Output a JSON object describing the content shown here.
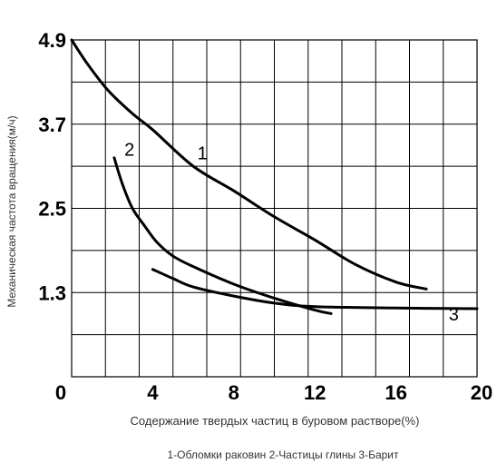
{
  "chart_data": {
    "type": "line",
    "xlabel": "Содержание твердых частиц в буровом растворе(%)",
    "ylabel": "Механическая частота вращения(м/ч)",
    "legend_text": "1-Обломки раковин  2-Частицы глины  3-Барит",
    "xlim": [
      0,
      20
    ],
    "x_ticks": [
      0,
      4,
      8,
      12,
      16,
      20
    ],
    "x_tick_labels": [
      "0",
      "4",
      "8",
      "12",
      "16",
      "20"
    ],
    "y_tick_values": [
      1.3,
      2.5,
      3.7,
      4.9
    ],
    "y_tick_labels": [
      "1.3",
      "2.5",
      "3.7",
      "4.9"
    ],
    "grid": true,
    "series": [
      {
        "name": "1",
        "points": [
          [
            0.0,
            4.9
          ],
          [
            0.8,
            4.55
          ],
          [
            1.8,
            4.18
          ],
          [
            3.0,
            3.85
          ],
          [
            4.0,
            3.62
          ],
          [
            6.0,
            3.1
          ],
          [
            8.0,
            2.75
          ],
          [
            10.0,
            2.38
          ],
          [
            12.0,
            2.05
          ],
          [
            14.0,
            1.7
          ],
          [
            16.0,
            1.45
          ],
          [
            17.5,
            1.35
          ]
        ]
      },
      {
        "name": "2",
        "points": [
          [
            2.1,
            3.22
          ],
          [
            2.5,
            2.85
          ],
          [
            3.0,
            2.5
          ],
          [
            3.6,
            2.25
          ],
          [
            4.2,
            2.02
          ],
          [
            5.0,
            1.82
          ],
          [
            6.0,
            1.67
          ],
          [
            8.0,
            1.42
          ],
          [
            10.0,
            1.22
          ],
          [
            12.0,
            1.05
          ],
          [
            12.8,
            1.0
          ]
        ]
      },
      {
        "name": "3",
        "points": [
          [
            4.0,
            1.63
          ],
          [
            5.0,
            1.5
          ],
          [
            6.0,
            1.38
          ],
          [
            8.0,
            1.25
          ],
          [
            10.0,
            1.15
          ],
          [
            12.0,
            1.1
          ],
          [
            16.0,
            1.08
          ],
          [
            20.0,
            1.07
          ]
        ]
      }
    ]
  }
}
